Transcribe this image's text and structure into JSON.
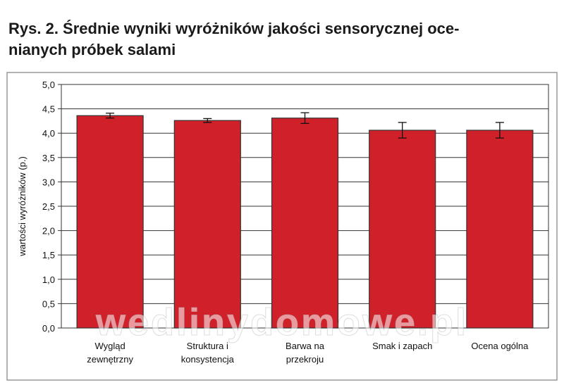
{
  "chart_data": {
    "type": "bar",
    "title": [
      "Rys. 2. Średnie wyniki wyróżników jakości sensorycznej oce-",
      "nianych próbek salami"
    ],
    "y_label": "wartości wyróżników (p.)",
    "watermark": "wedlinydomowe.pl",
    "categories": [
      "Wygląd\nzewnętrzny",
      "Struktura i\nkonsystencja",
      "Barwa na\nprzekroju",
      "Smak i zapach",
      "Ocena ogólna"
    ],
    "values": [
      4.36,
      4.26,
      4.31,
      4.06,
      4.06
    ],
    "errors": [
      0.05,
      0.04,
      0.11,
      0.16,
      0.16
    ],
    "color": "#d0202a",
    "ylim": [
      0,
      5
    ],
    "yticks": [
      {
        "value": 0,
        "label": "0,0"
      },
      {
        "value": 0.5,
        "label": "0,5"
      },
      {
        "value": 1,
        "label": "1,0"
      },
      {
        "value": 1.5,
        "label": "1,5"
      },
      {
        "value": 2,
        "label": "2,0"
      },
      {
        "value": 2.5,
        "label": "2,5"
      },
      {
        "value": 3,
        "label": "3,0"
      },
      {
        "value": 3.5,
        "label": "3,5"
      },
      {
        "value": 4,
        "label": "4,0"
      },
      {
        "value": 4.5,
        "label": "4,5"
      },
      {
        "value": 5,
        "label": "5,0"
      }
    ],
    "grid": true
  }
}
